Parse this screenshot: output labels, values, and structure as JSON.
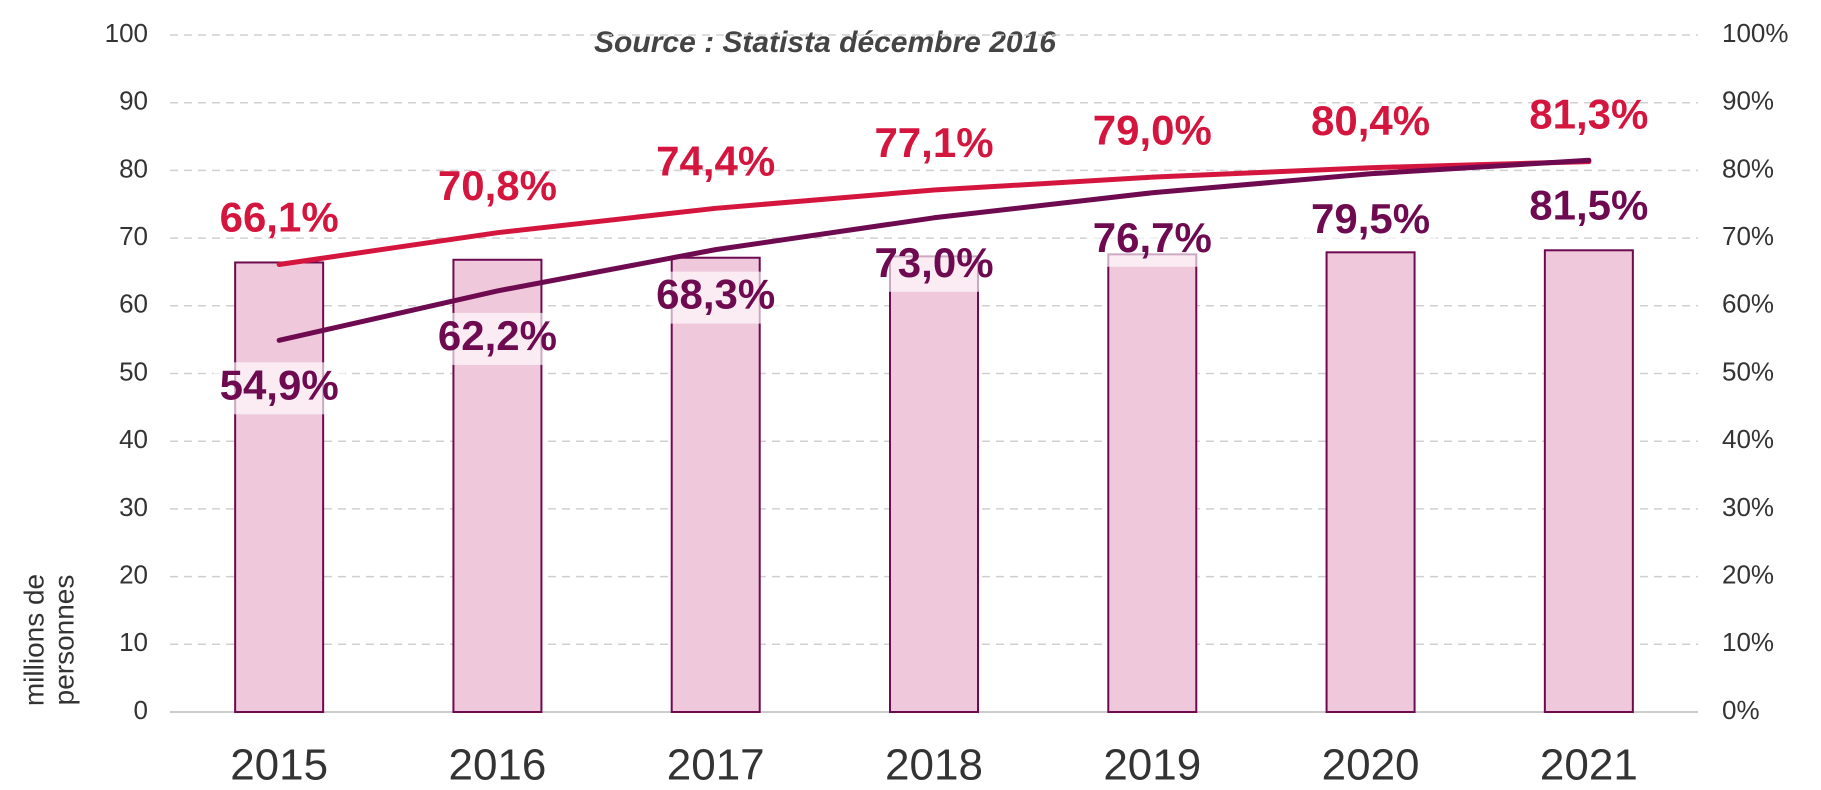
{
  "chart_data": {
    "type": "bar_line",
    "source": "Source : Statista décembre 2016",
    "y_label": [
      "millions de",
      "personnes"
    ],
    "categories": [
      "2015",
      "2016",
      "2017",
      "2018",
      "2019",
      "2020",
      "2021"
    ],
    "bars": {
      "color": "#efc9db",
      "edge_color": "#6e0a50",
      "values": [
        66.4,
        66.8,
        67.1,
        67.3,
        67.6,
        67.9,
        68.2
      ]
    },
    "series": [
      {
        "color": "#d4163f",
        "axis": "y2",
        "values": [
          66.1,
          70.8,
          74.4,
          77.1,
          79.0,
          80.4,
          81.3
        ],
        "value_labels": [
          "66,1%",
          "70,8%",
          "74,4%",
          "77,1%",
          "79,0%",
          "80,4%",
          "81,3%"
        ]
      },
      {
        "color": "#6e0a50",
        "axis": "y2",
        "values": [
          54.9,
          62.2,
          68.3,
          73.0,
          76.7,
          79.5,
          81.5
        ],
        "value_labels": [
          "54,9%",
          "62,2%",
          "68,3%",
          "73,0%",
          "76,7%",
          "79,5%",
          "81,5%"
        ]
      }
    ],
    "ylim": [
      0,
      100
    ],
    "yticks": [
      0,
      10,
      20,
      30,
      40,
      50,
      60,
      70,
      80,
      90,
      100
    ],
    "y2lim": [
      0,
      100
    ],
    "y2ticks": [
      {
        "value": 0,
        "label": "0%"
      },
      {
        "value": 10,
        "label": "10%"
      },
      {
        "value": 20,
        "label": "20%"
      },
      {
        "value": 30,
        "label": "30%"
      },
      {
        "value": 40,
        "label": "40%"
      },
      {
        "value": 50,
        "label": "50%"
      },
      {
        "value": 60,
        "label": "60%"
      },
      {
        "value": 70,
        "label": "70%"
      },
      {
        "value": 80,
        "label": "80%"
      },
      {
        "value": 90,
        "label": "90%"
      },
      {
        "value": 100,
        "label": "100%"
      }
    ],
    "grid": true
  }
}
